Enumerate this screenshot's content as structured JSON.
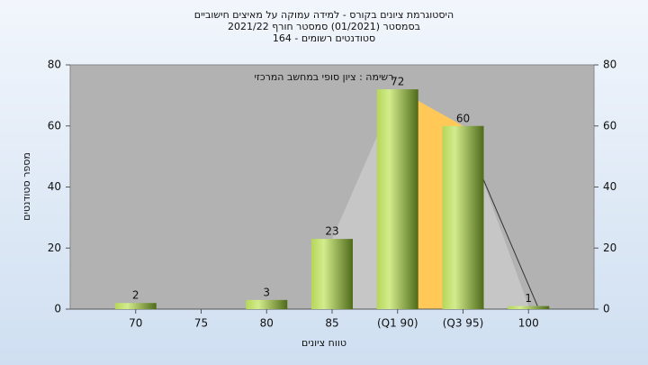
{
  "chart_data": {
    "type": "bar",
    "title": "היסטוגרמת ציונים בקורס - למידה עמוקה על מאיצים חישוביים",
    "subtitle": "בסמסטר  (01/2021)  סמסטר חורף 2021/22",
    "subtitle2": "סטודנטים רשומים - 164",
    "legend_label": "רשימה : ציון סופי במחשב המרכזי",
    "x_label": "טווח ציונים",
    "y_label": "מספר סטודנטים",
    "categories": [
      "70",
      "75",
      "80",
      "85",
      "(Q1 90)",
      "(Q3 95)",
      "100"
    ],
    "values": [
      2,
      0,
      3,
      23,
      72,
      60,
      1
    ],
    "value_labels": [
      "2",
      null,
      "3",
      "23",
      "72",
      "60",
      "1"
    ],
    "ylim": [
      0,
      80
    ],
    "yticks": [
      0,
      20,
      40,
      60,
      80
    ],
    "y2lim": [
      0,
      80
    ],
    "y2ticks": [
      0,
      20,
      40,
      60,
      80
    ],
    "grid": false
  }
}
